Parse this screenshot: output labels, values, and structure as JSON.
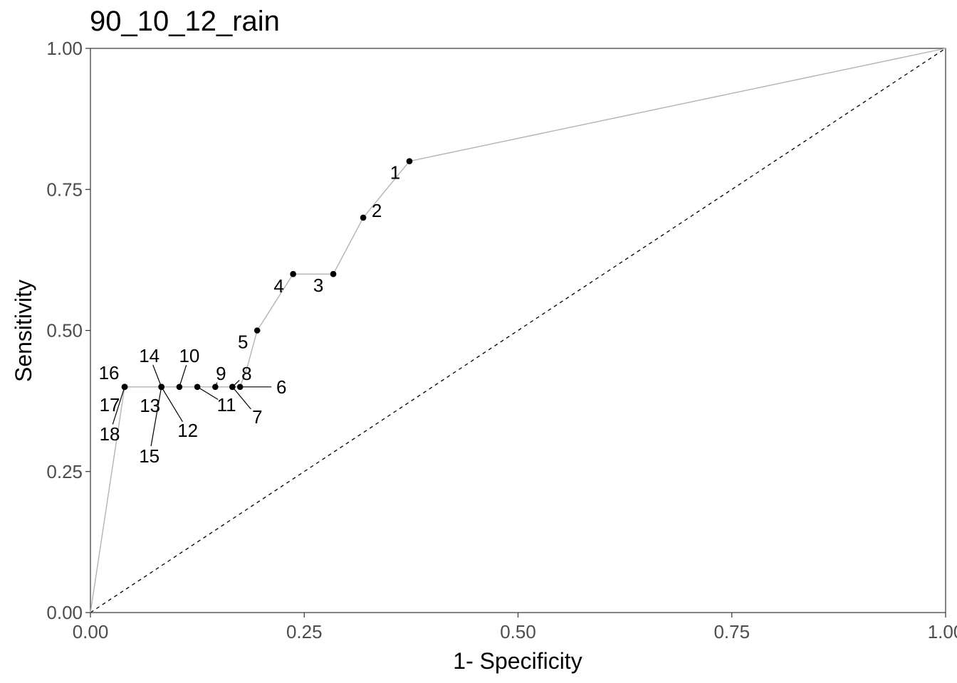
{
  "chart_data": {
    "type": "line",
    "title": "90_10_12_rain",
    "xlabel": "1- Specificity",
    "ylabel": "Sensitivity",
    "xlim": [
      0,
      1
    ],
    "ylim": [
      0,
      1
    ],
    "x_ticks": [
      "0.00",
      "0.25",
      "0.50",
      "0.75",
      "1.00"
    ],
    "y_ticks": [
      "0.00",
      "0.25",
      "0.50",
      "0.75",
      "1.00"
    ],
    "grid": false,
    "reference_line": {
      "from": [
        0,
        0
      ],
      "to": [
        1,
        1
      ],
      "style": "dashed"
    },
    "curve": [
      [
        0,
        0
      ],
      [
        0.04,
        0.4
      ],
      [
        0.083,
        0.4
      ],
      [
        0.104,
        0.4
      ],
      [
        0.125,
        0.4
      ],
      [
        0.146,
        0.4
      ],
      [
        0.166,
        0.4
      ],
      [
        0.175,
        0.4
      ],
      [
        0.183,
        0.433
      ],
      [
        0.195,
        0.5
      ],
      [
        0.237,
        0.6
      ],
      [
        0.284,
        0.6
      ],
      [
        0.319,
        0.7
      ],
      [
        0.373,
        0.8
      ],
      [
        1,
        1
      ]
    ],
    "points": [
      {
        "label": "1",
        "x": 0.373,
        "y": 0.8
      },
      {
        "label": "2",
        "x": 0.319,
        "y": 0.7
      },
      {
        "label": "3",
        "x": 0.284,
        "y": 0.6
      },
      {
        "label": "4",
        "x": 0.237,
        "y": 0.6
      },
      {
        "label": "5",
        "x": 0.195,
        "y": 0.5
      },
      {
        "label": "6",
        "x": 0.175,
        "y": 0.4
      },
      {
        "label": "7",
        "x": 0.166,
        "y": 0.4
      },
      {
        "label": "8",
        "x": 0.166,
        "y": 0.4
      },
      {
        "label": "9",
        "x": 0.146,
        "y": 0.4
      },
      {
        "label": "10",
        "x": 0.104,
        "y": 0.4
      },
      {
        "label": "11",
        "x": 0.125,
        "y": 0.4
      },
      {
        "label": "12",
        "x": 0.083,
        "y": 0.4
      },
      {
        "label": "13",
        "x": 0.083,
        "y": 0.4
      },
      {
        "label": "14",
        "x": 0.083,
        "y": 0.4
      },
      {
        "label": "15",
        "x": 0.083,
        "y": 0.4
      },
      {
        "label": "16",
        "x": 0.04,
        "y": 0.4
      },
      {
        "label": "17",
        "x": 0.04,
        "y": 0.4
      },
      {
        "label": "18",
        "x": 0.04,
        "y": 0.4
      }
    ],
    "colors": {
      "curve": "#b3b3b3",
      "points": "#000000",
      "reference": "#000000"
    }
  }
}
